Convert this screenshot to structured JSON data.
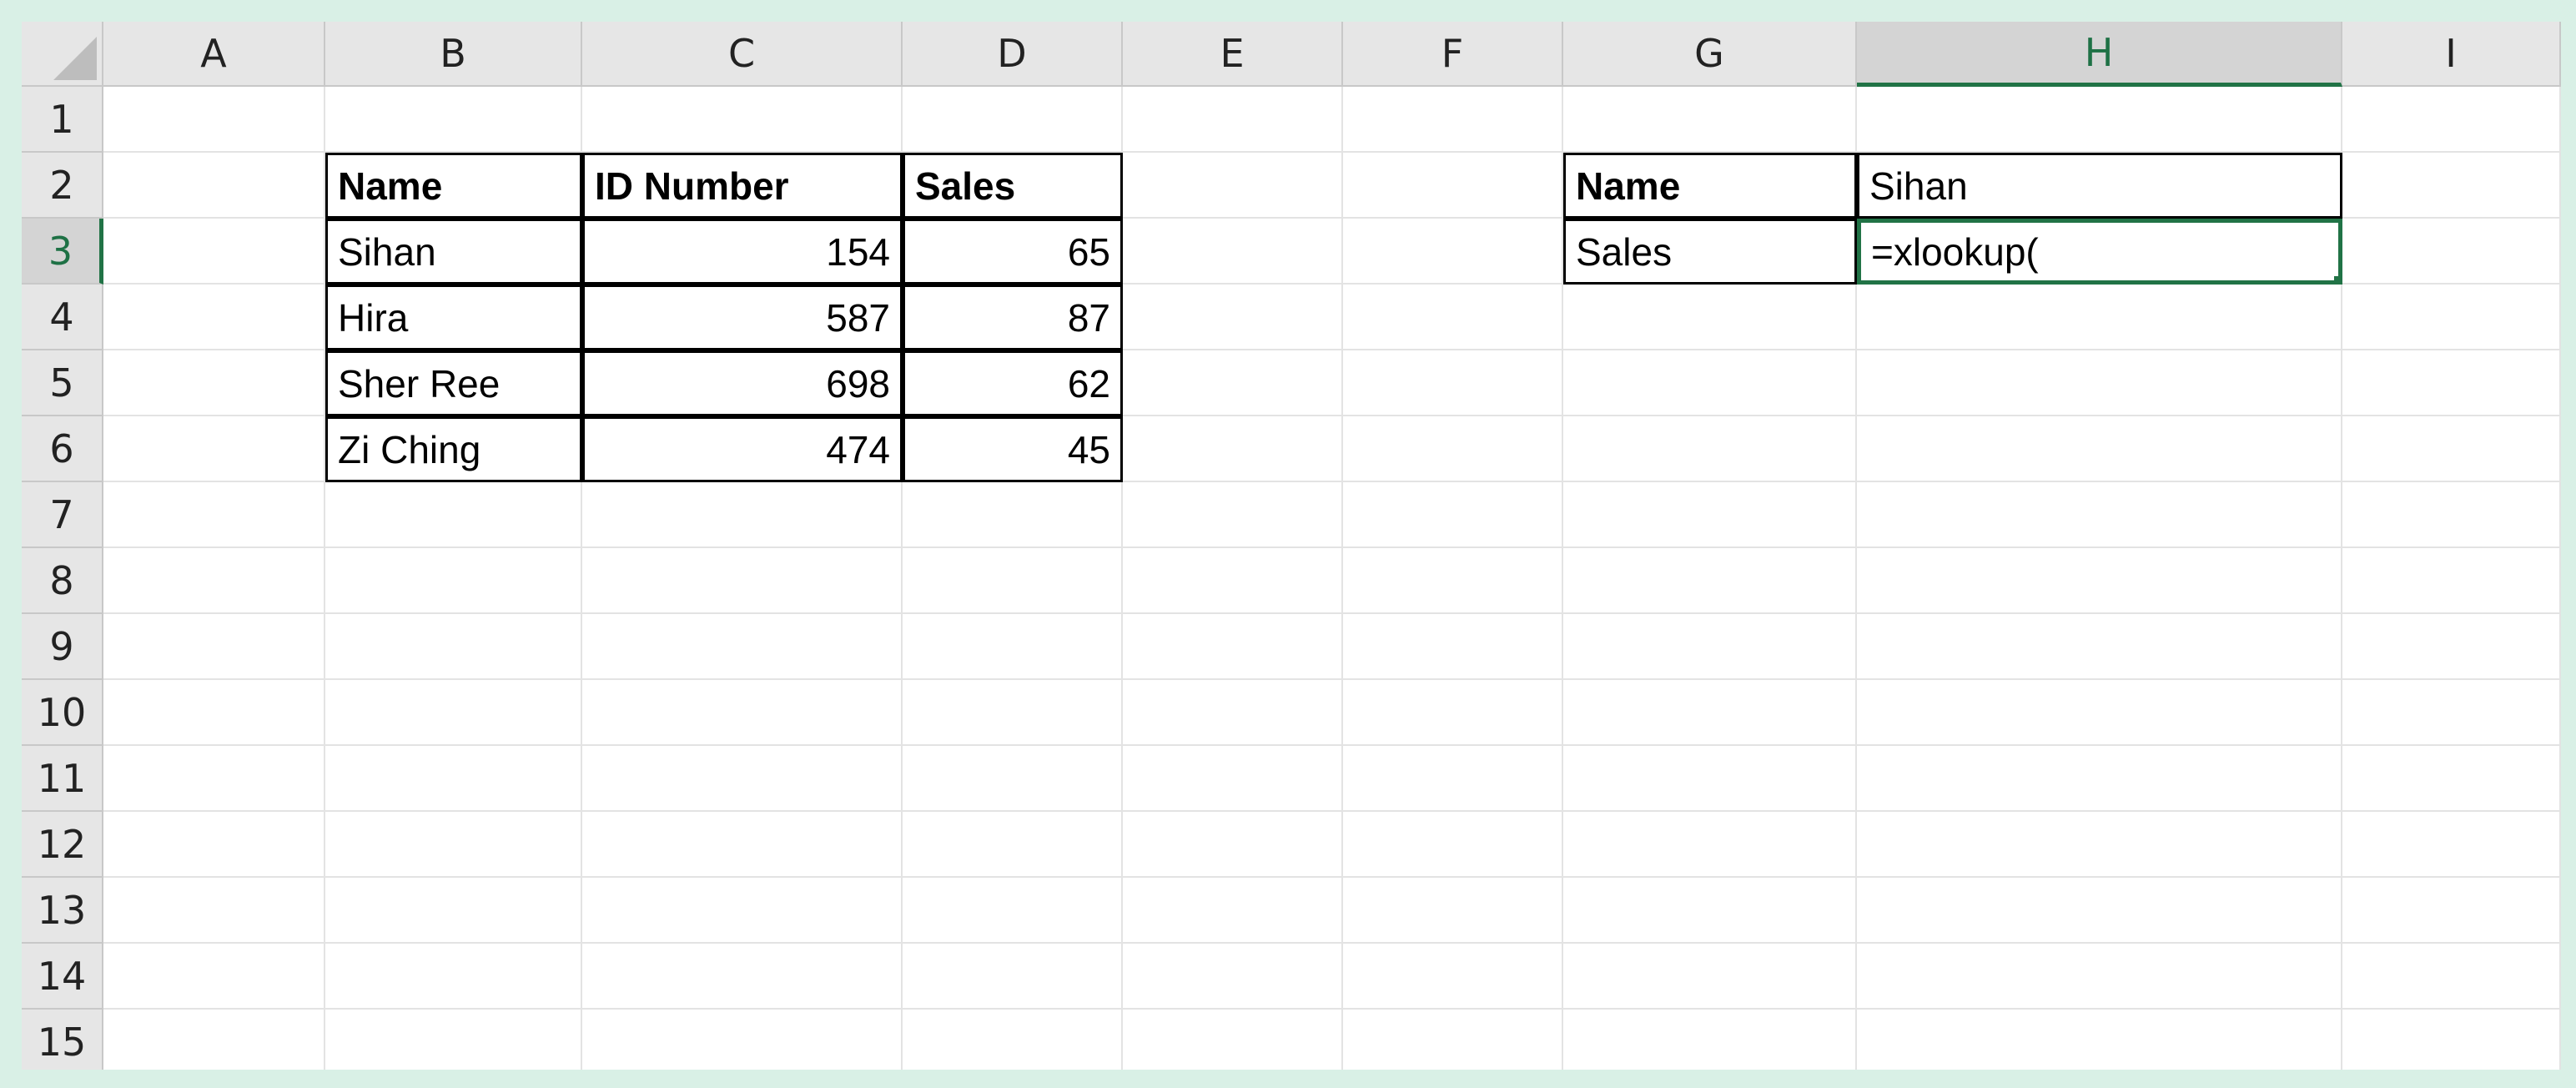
{
  "colors": {
    "frame_bg": "#d9f0e6",
    "header_bg": "#e6e6e6",
    "selected_accent": "#217346"
  },
  "columns": [
    "A",
    "B",
    "C",
    "D",
    "E",
    "F",
    "G",
    "H",
    "I"
  ],
  "rows": [
    "1",
    "2",
    "3",
    "4",
    "5",
    "6",
    "7",
    "8",
    "9",
    "10",
    "11",
    "12",
    "13",
    "14",
    "15"
  ],
  "selection": {
    "column": "H",
    "row": "3"
  },
  "main_table": {
    "headers": [
      "Name",
      "ID Number",
      "Sales"
    ],
    "rows": [
      [
        "Sihan",
        "154",
        "65"
      ],
      [
        "Hira",
        "587",
        "87"
      ],
      [
        "Sher Ree",
        "698",
        "62"
      ],
      [
        "Zi Ching",
        "474",
        "45"
      ]
    ]
  },
  "lookup_table": {
    "name_label": "Name",
    "name_value": "Sihan",
    "sales_label": "Sales",
    "sales_formula": "=xlookup("
  }
}
